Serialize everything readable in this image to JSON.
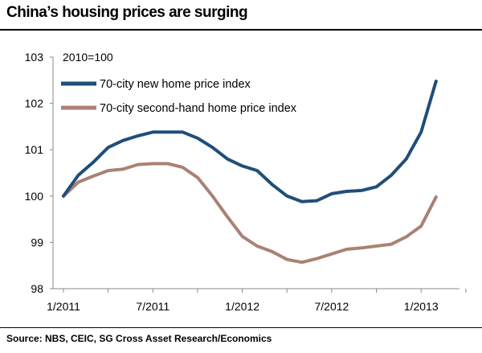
{
  "title": "China’s housing prices are surging",
  "source": "Source: NBS, CEIC, SG Cross Asset Research/Economics",
  "chart_data": {
    "type": "line",
    "annotation": "2010=100",
    "x": [
      "2011-01",
      "2011-02",
      "2011-03",
      "2011-04",
      "2011-05",
      "2011-06",
      "2011-07",
      "2011-08",
      "2011-09",
      "2011-10",
      "2011-11",
      "2011-12",
      "2012-01",
      "2012-02",
      "2012-03",
      "2012-04",
      "2012-05",
      "2012-06",
      "2012-07",
      "2012-08",
      "2012-09",
      "2012-10",
      "2012-11",
      "2012-12",
      "2013-01",
      "2013-02"
    ],
    "x_tick_labels": [
      "1/2011",
      "7/2011",
      "1/2012",
      "7/2012",
      "1/2013"
    ],
    "y_tick_labels": [
      "98",
      "99",
      "100",
      "101",
      "102",
      "103"
    ],
    "ylim": [
      98,
      103
    ],
    "grid": false,
    "legend_position": "top-left",
    "series": [
      {
        "name": "70-city new home price index",
        "color": "#1f4e79",
        "values": [
          100.0,
          100.45,
          100.73,
          101.05,
          101.2,
          101.3,
          101.38,
          101.38,
          101.38,
          101.25,
          101.05,
          100.8,
          100.65,
          100.55,
          100.25,
          100.0,
          99.88,
          99.9,
          100.05,
          100.1,
          100.12,
          100.2,
          100.45,
          100.8,
          101.38,
          102.48
        ]
      },
      {
        "name": "70-city second-hand home price index",
        "color": "#a98274",
        "values": [
          100.0,
          100.3,
          100.43,
          100.55,
          100.58,
          100.68,
          100.7,
          100.7,
          100.62,
          100.4,
          100.0,
          99.55,
          99.13,
          98.92,
          98.8,
          98.63,
          98.57,
          98.65,
          98.75,
          98.85,
          98.88,
          98.92,
          98.96,
          99.12,
          99.35,
          99.98
        ]
      }
    ]
  }
}
